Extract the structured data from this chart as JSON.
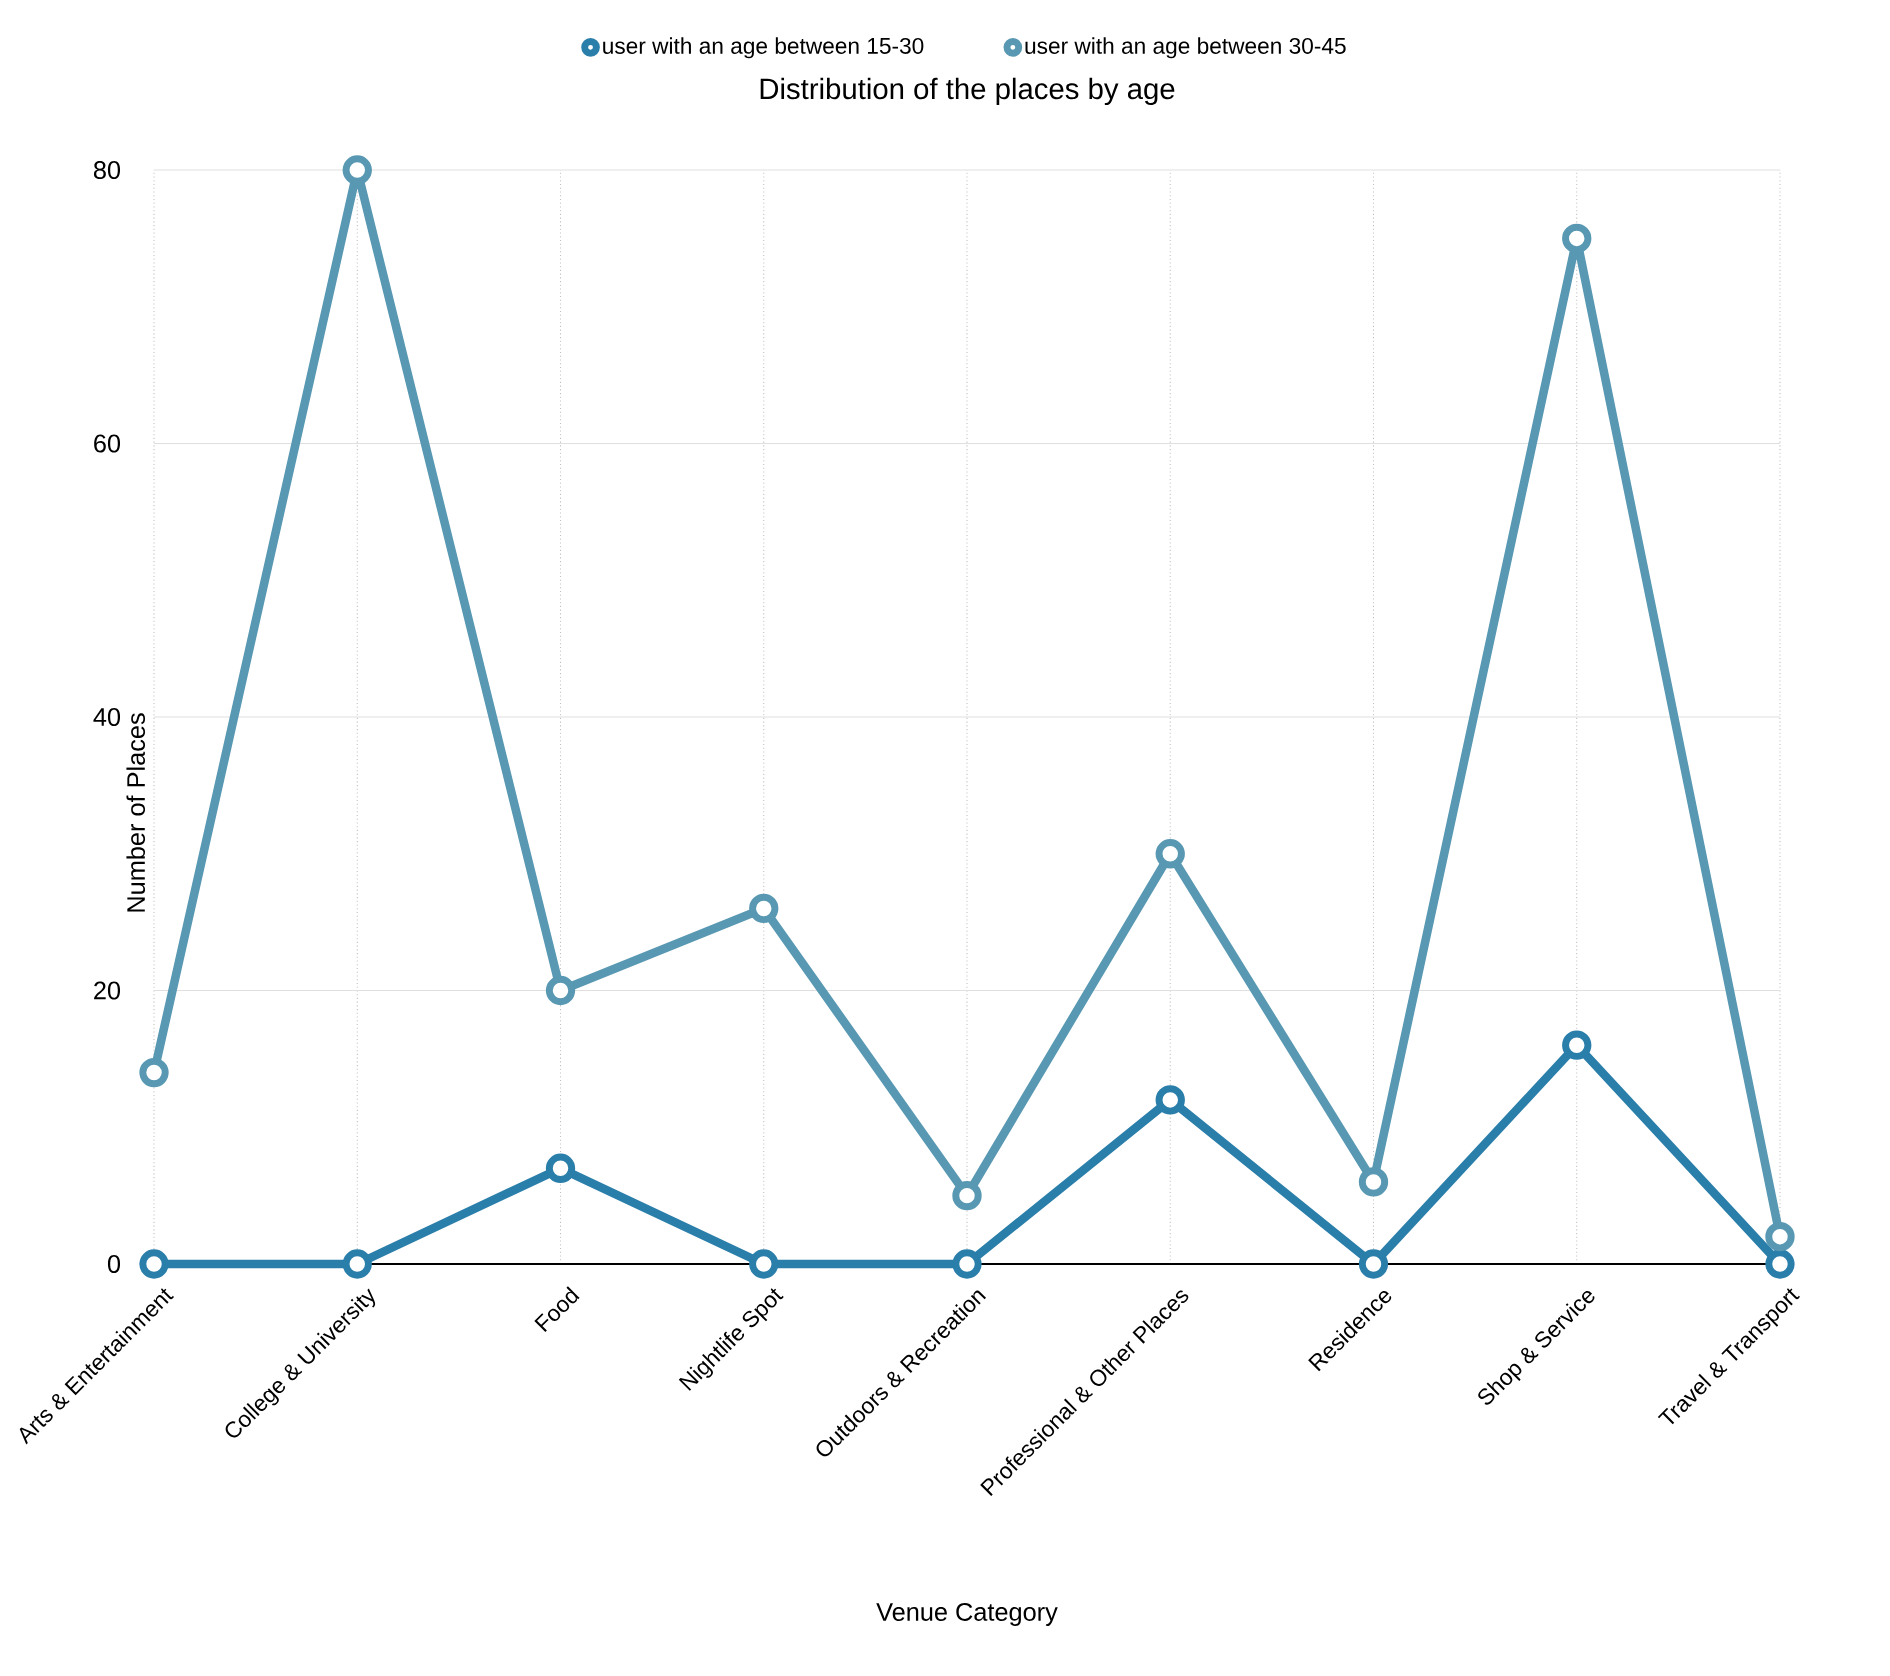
{
  "chart_data": {
    "type": "line",
    "title": "Distribution of the places by age",
    "xlabel": "Venue Category",
    "ylabel": "Number of Places",
    "categories": [
      "Arts & Entertainment",
      "College & University",
      "Food",
      "Nightlife Spot",
      "Outdoors & Recreation",
      "Professional & Other Places",
      "Residence",
      "Shop & Service",
      "Travel & Transport"
    ],
    "series": [
      {
        "name": "user with an age between 15-30",
        "color": "#2a7eaa",
        "values": [
          0,
          0,
          7,
          0,
          0,
          12,
          0,
          16,
          0
        ]
      },
      {
        "name": "user with an age between 30-45",
        "color": "#5898b2",
        "values": [
          14,
          80,
          20,
          26,
          5,
          30,
          6,
          75,
          2
        ]
      }
    ],
    "ylim": [
      0,
      80
    ],
    "yticks": [
      0,
      20,
      40,
      60,
      80
    ],
    "grid": true,
    "legend": "top",
    "marker": "circle",
    "line_style": "solid"
  }
}
